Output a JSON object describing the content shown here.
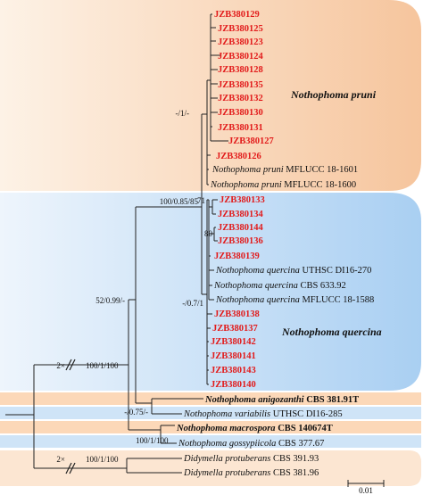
{
  "clade_labels": {
    "pruni": "Nothophoma pruni",
    "quercina": "Nothophoma quercina"
  },
  "support_values": {
    "pruni_clade": "-/1/-",
    "big_clade": "100/0.85/85",
    "inner_71": "71",
    "inner_80": "80",
    "querc_low": "-/0.7/1",
    "node_52": "52/0.99/-",
    "node_100_1": "100/1/100",
    "var_node": "-/0.75/-",
    "macro_node": "100/1/100",
    "outgroup_node": "100/1/100",
    "break_mark": "2×"
  },
  "pruni_strains": [
    "JZB380129",
    "JZB380125",
    "JZB380123",
    "JZB380124",
    "JZB380128",
    "JZB380135",
    "JZB380132",
    "JZB380130",
    "JZB380131",
    "JZB380127",
    "JZB380126"
  ],
  "pruni_refs": [
    {
      "species": "Nothophoma pruni",
      "strain": "MFLUCC 18-1601"
    },
    {
      "species": "Nothophoma pruni",
      "strain": "MFLUCC 18-1600"
    }
  ],
  "quercina_strains_a": [
    "JZB380133",
    "JZB380134",
    "JZB380144",
    "JZB380136",
    "JZB380139"
  ],
  "quercina_refs": [
    {
      "species": "Nothophoma quercina",
      "strain": "UTHSC DI16-270"
    },
    {
      "species": "Nothophoma quercina",
      "strain": "CBS 633.92"
    },
    {
      "species": "Nothophoma quercina",
      "strain": "MFLUCC 18-1588"
    }
  ],
  "quercina_strains_b": [
    "JZB380138",
    "JZB380137",
    "JZB380142",
    "JZB380141",
    "JZB380143",
    "JZB380140"
  ],
  "other_taxa": [
    {
      "species": "Nothophoma anigozanthi",
      "strain": "CBS 381.91T",
      "bold": true
    },
    {
      "species": "Nothophoma variabilis",
      "strain": "UTHSC DI16-285",
      "bold": false
    },
    {
      "species": "Nothophoma macrospora",
      "strain": "CBS 140674T",
      "bold": true
    },
    {
      "species": "Nothophoma gossypiicola",
      "strain": "CBS 377.67",
      "bold": false
    }
  ],
  "outgroup": [
    {
      "species": "Didymella protuberans",
      "strain": "CBS 391.93"
    },
    {
      "species": "Didymella protuberans",
      "strain": "CBS 381.96"
    }
  ],
  "scale_label": "0.01",
  "colors": {
    "pruni_bg_from": "#fdf2e6",
    "pruni_bg_to": "#f6c59d",
    "quercina_bg_from": "#eef5fc",
    "quercina_bg_to": "#a9cff2",
    "new_strain": "#e21b1b",
    "line": "#222222"
  }
}
